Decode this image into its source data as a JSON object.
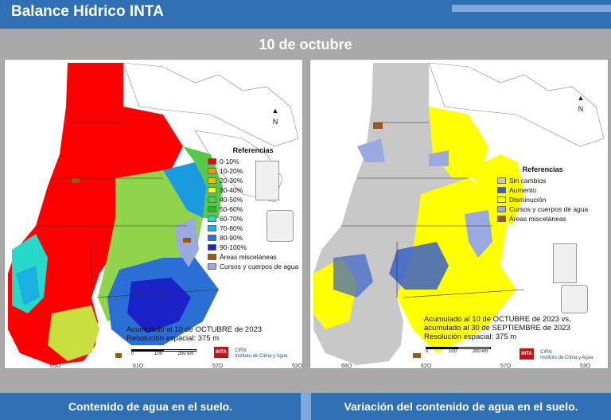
{
  "header": {
    "title": "Balance Hídrico INTA"
  },
  "date_title": "10 de octubre",
  "left_panel": {
    "legend_title": "Referencias",
    "legend": [
      {
        "label": "0-10%",
        "color": "#ff0000"
      },
      {
        "label": "10-20%",
        "color": "#ff9a00"
      },
      {
        "label": "20-30%",
        "color": "#e8c400"
      },
      {
        "label": "30-40%",
        "color": "#ffff33"
      },
      {
        "label": "40-50%",
        "color": "#57c94a"
      },
      {
        "label": "50-60%",
        "color": "#2db52d"
      },
      {
        "label": "60-70%",
        "color": "#27d9c8"
      },
      {
        "label": "70-80%",
        "color": "#1ab0e0"
      },
      {
        "label": "80-90%",
        "color": "#2b6fd6"
      },
      {
        "label": "90-100%",
        "color": "#1a22c8"
      },
      {
        "label": "Áreas misceláneas",
        "color": "#9a5a14"
      },
      {
        "label": "Cursos y cuerpos de agua",
        "color": "#9aa9e0"
      }
    ],
    "note_line1": "Acumulado al 10 de OCTUBRE de 2023",
    "note_line2": "Resolución espacial: 375 m",
    "ticks": [
      "65O",
      "61O",
      "57O",
      "52O"
    ],
    "scale": [
      "0",
      "100",
      "200 km"
    ],
    "north": "N",
    "inta": "INTA",
    "cirn1": "CIRN",
    "cirn2": "Instituto de Clima y Agua",
    "caption": "Contenido de agua en el suelo."
  },
  "right_panel": {
    "legend_title": "Referencias",
    "legend": [
      {
        "label": "Sin cambios",
        "color": "#c8c8c8"
      },
      {
        "label": "Aumento",
        "color": "#3b5fc8"
      },
      {
        "label": "Disminución",
        "color": "#ffff00"
      },
      {
        "label": "Cursos y cuerpos de agua",
        "color": "#9aa9e0"
      },
      {
        "label": "Áreas misceláneas",
        "color": "#a0561a"
      }
    ],
    "note_line1": "Acumulado al 10 de OCTUBRE de 2023 vs.",
    "note_line2": "acumulado al 30 de SEPTIEMBRE de 2023",
    "note_line3": "Resolución espacial: 375 m",
    "ticks": [
      "66O",
      "62O",
      "57O",
      "53O"
    ],
    "scale": [
      "0",
      "100",
      "200 km"
    ],
    "north": "N",
    "inta": "INTA",
    "cirn1": "CIRN",
    "cirn2": "Instituto de Clima y Agua",
    "caption": "Variación del contenido de agua en el suelo."
  }
}
